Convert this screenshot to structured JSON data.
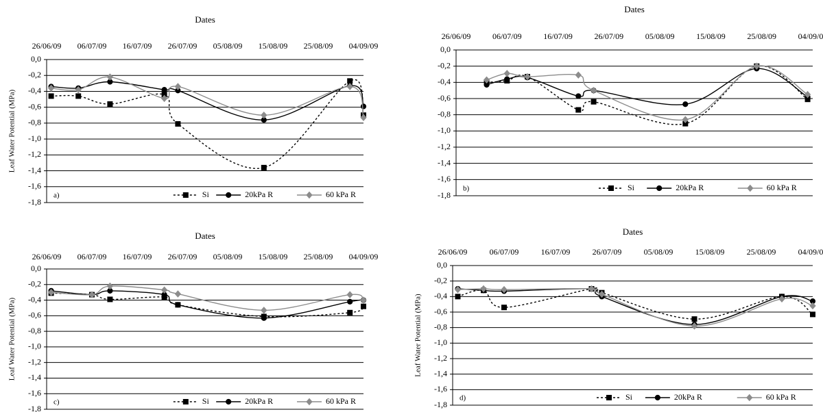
{
  "chart_data": [
    {
      "type": "line",
      "title": "Dates",
      "y_label": "Leaf Water Potential  (MPa)",
      "panel_label": "a)",
      "smooth": true,
      "x": [
        "27/06/09",
        "03/07/09",
        "10/07/09",
        "22/07/09",
        "25/07/09",
        "13/08/09",
        "01/09/09",
        "04/09/09"
      ],
      "xlim": [
        "26/06/09",
        "04/09/09"
      ],
      "xticks": [
        "26/06/09",
        "06/07/09",
        "16/07/09",
        "26/07/09",
        "05/08/09",
        "15/08/09",
        "25/08/09",
        "04/09/09"
      ],
      "ylim": [
        -1.8,
        0
      ],
      "yticks": [
        {
          "value": 0,
          "label": "0,0"
        },
        {
          "value": -0.2,
          "label": "-0,2"
        },
        {
          "value": -0.4,
          "label": "-0,4"
        },
        {
          "value": -0.6,
          "label": "-0,6"
        },
        {
          "value": -0.8,
          "label": "-0,8"
        },
        {
          "value": -1.0,
          "label": "-1,0"
        },
        {
          "value": -1.2,
          "label": "-1,2"
        },
        {
          "value": -1.4,
          "label": "-1,4"
        },
        {
          "value": -1.6,
          "label": "-1,6"
        },
        {
          "value": -1.8,
          "label": "-1,8"
        }
      ],
      "grid": true,
      "series": [
        {
          "name": "Si",
          "color": "#000000",
          "dashed": true,
          "marker": "square",
          "values": [
            -0.46,
            -0.46,
            -0.56,
            -0.44,
            -0.81,
            -1.36,
            -0.27,
            -0.7
          ]
        },
        {
          "name": "20kPa R",
          "color": "#000000",
          "dashed": false,
          "marker": "circle",
          "values": [
            -0.34,
            -0.36,
            -0.28,
            -0.38,
            -0.39,
            -0.76,
            -0.33,
            -0.59
          ]
        },
        {
          "name": "60 kPa R",
          "color": "#8c8c8c",
          "dashed": false,
          "marker": "diamond",
          "values": [
            -0.36,
            -0.38,
            -0.22,
            -0.49,
            -0.34,
            -0.7,
            -0.34,
            -0.73
          ]
        }
      ]
    },
    {
      "type": "line",
      "title": "Dates",
      "panel_label": "b)",
      "smooth": true,
      "x": [
        "02/07/09",
        "06/07/09",
        "10/07/09",
        "20/07/09",
        "23/07/09",
        "10/08/09",
        "24/08/09",
        "03/09/09"
      ],
      "xlim": [
        "26/06/09",
        "04/09/09"
      ],
      "xticks": [
        "26/06/09",
        "06/07/09",
        "16/07/09",
        "26/07/09",
        "05/08/09",
        "15/08/09",
        "25/08/09",
        "04/09/09"
      ],
      "ylim": [
        -1.8,
        0
      ],
      "yticks": [
        {
          "value": 0,
          "label": "0,0"
        },
        {
          "value": -0.2,
          "label": "-0,2"
        },
        {
          "value": -0.4,
          "label": "-0,4"
        },
        {
          "value": -0.6,
          "label": "-0,6"
        },
        {
          "value": -0.8,
          "label": "-0,8"
        },
        {
          "value": -1.0,
          "label": "-1,0"
        },
        {
          "value": -1.2,
          "label": "-1,2"
        },
        {
          "value": -1.4,
          "label": "-1,4"
        },
        {
          "value": -1.6,
          "label": "-1,6"
        },
        {
          "value": -1.8,
          "label": "-1,8"
        }
      ],
      "grid": true,
      "series": [
        {
          "name": "Si",
          "color": "#000000",
          "dashed": true,
          "marker": "square",
          "values": [
            -0.4,
            -0.38,
            -0.33,
            -0.74,
            -0.64,
            -0.91,
            -0.2,
            -0.61
          ]
        },
        {
          "name": "20kPa R",
          "color": "#000000",
          "dashed": false,
          "marker": "circle",
          "values": [
            -0.43,
            -0.36,
            -0.34,
            -0.57,
            -0.5,
            -0.67,
            -0.23,
            -0.58
          ]
        },
        {
          "name": "60 kPa R",
          "color": "#8c8c8c",
          "dashed": false,
          "marker": "diamond",
          "values": [
            -0.37,
            -0.29,
            -0.33,
            -0.31,
            -0.5,
            -0.86,
            -0.2,
            -0.55
          ]
        }
      ]
    },
    {
      "type": "line",
      "title": "Dates",
      "y_label": "Leaf Water Potential  (MPa)",
      "panel_label": "c)",
      "smooth": true,
      "x": [
        "27/06/09",
        "06/07/09",
        "10/07/09",
        "22/07/09",
        "25/07/09",
        "13/08/09",
        "01/09/09",
        "04/09/09"
      ],
      "xlim": [
        "26/06/09",
        "04/09/09"
      ],
      "xticks": [
        "26/06/09",
        "06/07/09",
        "16/07/09",
        "26/07/09",
        "05/08/09",
        "15/08/09",
        "25/08/09",
        "04/09/09"
      ],
      "ylim": [
        -1.8,
        0
      ],
      "yticks": [
        {
          "value": 0,
          "label": "0,0"
        },
        {
          "value": -0.2,
          "label": "-0,2"
        },
        {
          "value": -0.4,
          "label": "-0,4"
        },
        {
          "value": -0.6,
          "label": "-0,6"
        },
        {
          "value": -0.8,
          "label": "-0,8"
        },
        {
          "value": -1.0,
          "label": "-1,0"
        },
        {
          "value": -1.2,
          "label": "-1,2"
        },
        {
          "value": -1.4,
          "label": "-1,4"
        },
        {
          "value": -1.6,
          "label": "-1,6"
        },
        {
          "value": -1.8,
          "label": "-1,8"
        }
      ],
      "grid": true,
      "series": [
        {
          "name": "Si",
          "color": "#000000",
          "dashed": true,
          "marker": "square",
          "values": [
            -0.31,
            -0.33,
            -0.39,
            -0.36,
            -0.46,
            -0.61,
            -0.56,
            -0.48
          ]
        },
        {
          "name": "20kPa R",
          "color": "#000000",
          "dashed": false,
          "marker": "circle",
          "values": [
            -0.28,
            -0.33,
            -0.28,
            -0.33,
            -0.46,
            -0.63,
            -0.42,
            -0.4
          ]
        },
        {
          "name": "60 kPa R",
          "color": "#8c8c8c",
          "dashed": false,
          "marker": "diamond",
          "values": [
            -0.3,
            -0.33,
            -0.22,
            -0.27,
            -0.32,
            -0.53,
            -0.33,
            -0.4
          ]
        }
      ]
    },
    {
      "type": "line",
      "title": "Dates",
      "y_label": "Leaf Water Potential  (MPa)",
      "panel_label": "d)",
      "smooth": true,
      "x": [
        "27/06/09",
        "02/07/09",
        "06/07/09",
        "23/07/09",
        "25/07/09",
        "12/08/09",
        "29/08/09",
        "04/09/09"
      ],
      "xlim": [
        "26/06/09",
        "04/09/09"
      ],
      "xticks": [
        "26/06/09",
        "06/07/09",
        "16/07/09",
        "26/07/09",
        "05/08/09",
        "15/08/09",
        "25/08/09",
        "04/09/09"
      ],
      "ylim": [
        -1.8,
        0
      ],
      "yticks": [
        {
          "value": 0,
          "label": "0,0"
        },
        {
          "value": -0.2,
          "label": "-0,2"
        },
        {
          "value": -0.4,
          "label": "-0,4"
        },
        {
          "value": -0.6,
          "label": "-0,6"
        },
        {
          "value": -0.8,
          "label": "-0,8"
        },
        {
          "value": -1.0,
          "label": "-1,0"
        },
        {
          "value": -1.2,
          "label": "-1,2"
        },
        {
          "value": -1.4,
          "label": "-1,4"
        },
        {
          "value": -1.6,
          "label": "-1,6"
        },
        {
          "value": -1.8,
          "label": "-1,8"
        }
      ],
      "grid": true,
      "series": [
        {
          "name": "Si",
          "color": "#000000",
          "dashed": true,
          "marker": "square",
          "values": [
            -0.4,
            -0.32,
            -0.54,
            -0.3,
            -0.35,
            -0.69,
            -0.4,
            -0.63
          ]
        },
        {
          "name": "20kPa R",
          "color": "#000000",
          "dashed": false,
          "marker": "circle",
          "values": [
            -0.3,
            -0.32,
            -0.33,
            -0.3,
            -0.4,
            -0.76,
            -0.4,
            -0.46
          ]
        },
        {
          "name": "60 kPa R",
          "color": "#8c8c8c",
          "dashed": false,
          "marker": "diamond",
          "values": [
            -0.31,
            -0.3,
            -0.31,
            -0.3,
            -0.37,
            -0.78,
            -0.43,
            -0.52
          ]
        }
      ]
    }
  ]
}
